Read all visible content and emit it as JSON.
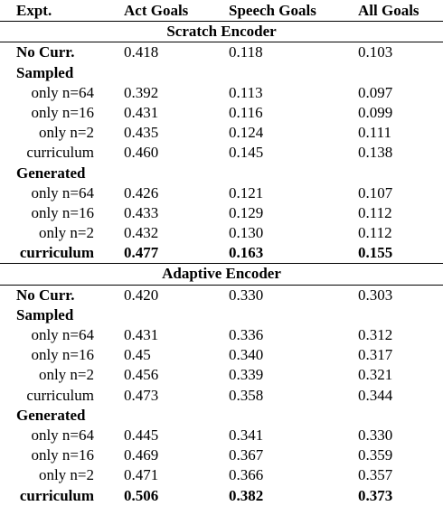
{
  "header": {
    "expt": "Expt.",
    "act": "Act Goals",
    "speech": "Speech Goals",
    "all": "All Goals"
  },
  "sections": [
    {
      "title": "Scratch Encoder",
      "rows": [
        {
          "kind": "group",
          "label": "No Curr.",
          "act": "0.418",
          "speech": "0.118",
          "all": "0.103"
        },
        {
          "kind": "group",
          "label": "Sampled",
          "act": "",
          "speech": "",
          "all": ""
        },
        {
          "kind": "sub",
          "label": "only n=64",
          "act": "0.392",
          "speech": "0.113",
          "all": "0.097"
        },
        {
          "kind": "sub",
          "label": "only n=16",
          "act": "0.431",
          "speech": "0.116",
          "all": "0.099"
        },
        {
          "kind": "sub",
          "label": "only n=2",
          "act": "0.435",
          "speech": "0.124",
          "all": "0.111"
        },
        {
          "kind": "sub",
          "label": "curriculum",
          "act": "0.460",
          "speech": "0.145",
          "all": "0.138"
        },
        {
          "kind": "group",
          "label": "Generated",
          "act": "",
          "speech": "",
          "all": ""
        },
        {
          "kind": "sub",
          "label": "only n=64",
          "act": "0.426",
          "speech": "0.121",
          "all": "0.107"
        },
        {
          "kind": "sub",
          "label": "only n=16",
          "act": "0.433",
          "speech": "0.129",
          "all": "0.112"
        },
        {
          "kind": "sub",
          "label": "only n=2",
          "act": "0.432",
          "speech": "0.130",
          "all": "0.112"
        },
        {
          "kind": "sub",
          "label": "curriculum",
          "act": "0.477",
          "speech": "0.163",
          "all": "0.155",
          "bold": true
        }
      ]
    },
    {
      "title": "Adaptive Encoder",
      "rows": [
        {
          "kind": "group",
          "label": "No Curr.",
          "act": "0.420",
          "speech": "0.330",
          "all": "0.303"
        },
        {
          "kind": "group",
          "label": "Sampled",
          "act": "",
          "speech": "",
          "all": ""
        },
        {
          "kind": "sub",
          "label": "only n=64",
          "act": "0.431",
          "speech": "0.336",
          "all": "0.312"
        },
        {
          "kind": "sub",
          "label": "only n=16",
          "act": "0.45",
          "speech": "0.340",
          "all": "0.317"
        },
        {
          "kind": "sub",
          "label": "only n=2",
          "act": "0.456",
          "speech": "0.339",
          "all": "0.321"
        },
        {
          "kind": "sub",
          "label": "curriculum",
          "act": "0.473",
          "speech": "0.358",
          "all": "0.344"
        },
        {
          "kind": "group",
          "label": "Generated",
          "act": "",
          "speech": "",
          "all": ""
        },
        {
          "kind": "sub",
          "label": "only n=64",
          "act": "0.445",
          "speech": "0.341",
          "all": "0.330"
        },
        {
          "kind": "sub",
          "label": "only n=16",
          "act": "0.469",
          "speech": "0.367",
          "all": "0.359"
        },
        {
          "kind": "sub",
          "label": "only n=2",
          "act": "0.471",
          "speech": "0.366",
          "all": "0.357"
        },
        {
          "kind": "sub",
          "label": "curriculum",
          "act": "0.506",
          "speech": "0.382",
          "all": "0.373",
          "bold": true
        }
      ]
    }
  ]
}
